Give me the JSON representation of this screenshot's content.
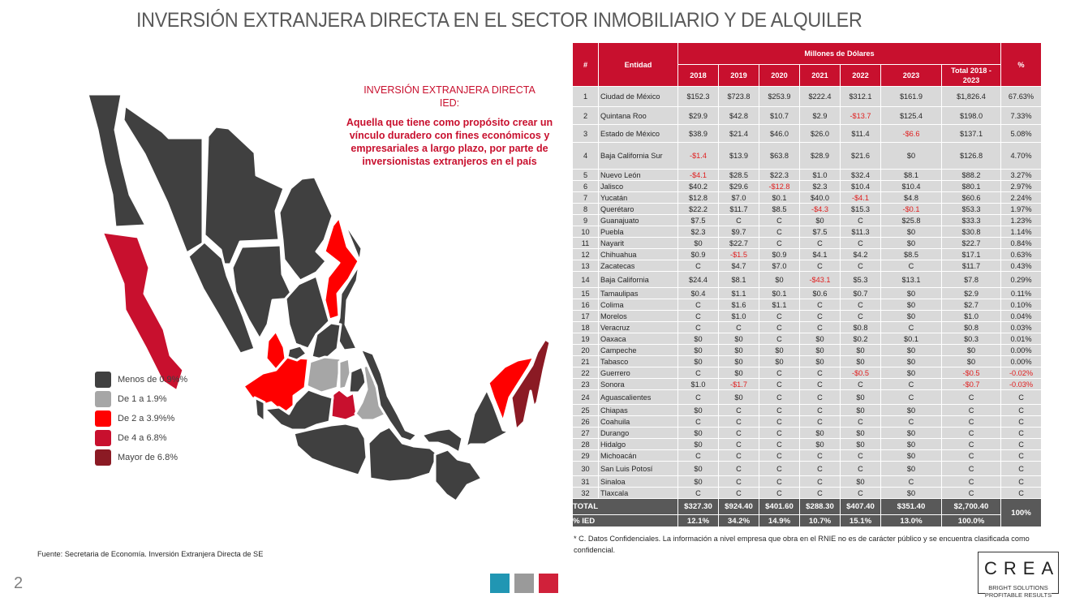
{
  "page": {
    "title": "INVERSIÓN EXTRANJERA DIRECTA EN EL SECTOR INMOBILIARIO Y DE ALQUILER",
    "page_number": "2",
    "source": "Fuente: Secretaria de Economía. Inversión Extranjera Directa de SE",
    "footnote": "* C. Datos Confidenciales. La información a nivel empresa que obra en el RNIE no es de carácter público y se encuentra clasificada como confidencial."
  },
  "definition": {
    "title_line1": "INVERSIÓN EXTRANJERA DIRECTA",
    "title_line2": "IED:",
    "body": "Aquella que tiene como propósito crear un vínculo duradero con fines económicos y empresariales a largo plazo, por parte de inversionistas extranjeros en el país"
  },
  "legend": [
    {
      "label": "Menos de 0.9%%",
      "color": "#404040"
    },
    {
      "label": "De 1 a 1.9%",
      "color": "#a6a6a6"
    },
    {
      "label": "De 2 a 3.9%%",
      "color": "#ff0000"
    },
    {
      "label": "De 4 a 6.8%",
      "color": "#c8102e"
    },
    {
      "label": "Mayor de 6.8%",
      "color": "#8b1a24"
    }
  ],
  "colors": {
    "header_red": "#c8102e",
    "negative": "#e02020",
    "row_bg": "#d9d9d9",
    "total_bg": "#595959",
    "accent_teal": "#2196b3",
    "accent_gray": "#9a9a9a",
    "accent_red": "#d0213a"
  },
  "table": {
    "header": {
      "num": "#",
      "entity": "Entidad",
      "group": "Millones de Dólares",
      "years": [
        "2018",
        "2019",
        "2020",
        "2021",
        "2022",
        "2023"
      ],
      "total": "Total 2018 - 2023",
      "pct": "%"
    },
    "rows": [
      {
        "n": "1",
        "entity": "Ciudad de México",
        "v": [
          "$152.3",
          "$723.8",
          "$253.9",
          "$222.4",
          "$312.1",
          "$161.9"
        ],
        "total": "$1,826.4",
        "pct": "67.63%",
        "h": 25
      },
      {
        "n": "2",
        "entity": "Quintana Roo",
        "v": [
          "$29.9",
          "$42.8",
          "$10.7",
          "$2.9",
          "-$13.7",
          "$125.4"
        ],
        "total": "$198.0",
        "pct": "7.33%",
        "h": 22
      },
      {
        "n": "3",
        "entity": "Estado de México",
        "v": [
          "$38.9",
          "$21.4",
          "$46.0",
          "$26.0",
          "$11.4",
          "-$6.6"
        ],
        "total": "$137.1",
        "pct": "5.08%",
        "h": 22
      },
      {
        "n": "4",
        "entity": "Baja California Sur",
        "v": [
          "-$1.4",
          "$13.9",
          "$63.8",
          "$28.9",
          "$21.6",
          "$0"
        ],
        "total": "$126.8",
        "pct": "4.70%",
        "h": 33
      },
      {
        "n": "5",
        "entity": "Nuevo León",
        "v": [
          "-$4.1",
          "$28.5",
          "$22.3",
          "$1.0",
          "$32.4",
          "$8.1"
        ],
        "total": "$88.2",
        "pct": "3.27%",
        "h": 14
      },
      {
        "n": "6",
        "entity": "Jalisco",
        "v": [
          "$40.2",
          "$29.6",
          "-$12.8",
          "$2.3",
          "$10.4",
          "$10.4"
        ],
        "total": "$80.1",
        "pct": "2.97%",
        "h": 14
      },
      {
        "n": "7",
        "entity": "Yucatán",
        "v": [
          "$12.8",
          "$7.0",
          "$0.1",
          "$40.0",
          "-$4.1",
          "$4.8"
        ],
        "total": "$60.6",
        "pct": "2.24%",
        "h": 14
      },
      {
        "n": "8",
        "entity": "Querétaro",
        "v": [
          "$22.2",
          "$11.7",
          "$8.5",
          "-$4.3",
          "$15.3",
          "-$0.1"
        ],
        "total": "$53.3",
        "pct": "1.97%",
        "h": 14
      },
      {
        "n": "9",
        "entity": "Guanajuato",
        "v": [
          "$7.5",
          "C",
          "C",
          "$0",
          "C",
          "$25.8"
        ],
        "total": "$33.3",
        "pct": "1.23%",
        "h": 14
      },
      {
        "n": "10",
        "entity": "Puebla",
        "v": [
          "$2.3",
          "$9.7",
          "C",
          "$7.5",
          "$11.3",
          "$0"
        ],
        "total": "$30.8",
        "pct": "1.14%",
        "h": 14
      },
      {
        "n": "11",
        "entity": "Nayarit",
        "v": [
          "$0",
          "$22.7",
          "C",
          "C",
          "C",
          "$0"
        ],
        "total": "$22.7",
        "pct": "0.84%",
        "h": 14
      },
      {
        "n": "12",
        "entity": "Chihuahua",
        "v": [
          "$0.9",
          "-$1.5",
          "$0.9",
          "$4.1",
          "$4.2",
          "$8.5"
        ],
        "total": "$17.1",
        "pct": "0.63%",
        "h": 14
      },
      {
        "n": "13",
        "entity": "Zacatecas",
        "v": [
          "C",
          "$4.7",
          "$7.0",
          "C",
          "C",
          "C"
        ],
        "total": "$11.7",
        "pct": "0.43%",
        "h": 14
      },
      {
        "n": "14",
        "entity": "Baja California",
        "v": [
          "$24.4",
          "$8.1",
          "$0",
          "-$43.1",
          "$5.3",
          "$13.1"
        ],
        "total": "$7.8",
        "pct": "0.29%",
        "h": 20
      },
      {
        "n": "15",
        "entity": "Tamaulipas",
        "v": [
          "$0.4",
          "$1.1",
          "$0.1",
          "$0.6",
          "$0.7",
          "$0"
        ],
        "total": "$2.9",
        "pct": "0.11%",
        "h": 14
      },
      {
        "n": "16",
        "entity": "Colima",
        "v": [
          "C",
          "$1.6",
          "$1.1",
          "C",
          "C",
          "$0"
        ],
        "total": "$2.7",
        "pct": "0.10%",
        "h": 14
      },
      {
        "n": "17",
        "entity": "Morelos",
        "v": [
          "C",
          "$1.0",
          "C",
          "C",
          "C",
          "$0"
        ],
        "total": "$1.0",
        "pct": "0.04%",
        "h": 14
      },
      {
        "n": "18",
        "entity": "Veracruz",
        "v": [
          "C",
          "C",
          "C",
          "C",
          "$0.8",
          "C"
        ],
        "total": "$0.8",
        "pct": "0.03%",
        "h": 14
      },
      {
        "n": "19",
        "entity": "Oaxaca",
        "v": [
          "$0",
          "$0",
          "C",
          "$0",
          "$0.2",
          "$0.1"
        ],
        "total": "$0.3",
        "pct": "0.01%",
        "h": 14
      },
      {
        "n": "20",
        "entity": "Campeche",
        "v": [
          "$0",
          "$0",
          "$0",
          "$0",
          "$0",
          "$0"
        ],
        "total": "$0",
        "pct": "0.00%",
        "h": 14
      },
      {
        "n": "21",
        "entity": "Tabasco",
        "v": [
          "$0",
          "$0",
          "$0",
          "$0",
          "$0",
          "$0"
        ],
        "total": "$0",
        "pct": "0.00%",
        "h": 14
      },
      {
        "n": "22",
        "entity": "Guerrero",
        "v": [
          "C",
          "$0",
          "C",
          "C",
          "-$0.5",
          "$0"
        ],
        "total": "-$0.5",
        "pct": "-0.02%",
        "h": 14
      },
      {
        "n": "23",
        "entity": "Sonora",
        "v": [
          "$1.0",
          "-$1.7",
          "C",
          "C",
          "C",
          "C"
        ],
        "total": "-$0.7",
        "pct": "-0.03%",
        "h": 14
      },
      {
        "n": "24",
        "entity": "Aguascalientes",
        "v": [
          "C",
          "$0",
          "C",
          "C",
          "$0",
          "C"
        ],
        "total": "C",
        "pct": "C",
        "h": 18
      },
      {
        "n": "25",
        "entity": "Chiapas",
        "v": [
          "$0",
          "C",
          "C",
          "C",
          "$0",
          "$0"
        ],
        "total": "C",
        "pct": "C",
        "h": 14
      },
      {
        "n": "26",
        "entity": "Coahuila",
        "v": [
          "C",
          "C",
          "C",
          "C",
          "C",
          "C"
        ],
        "total": "C",
        "pct": "C",
        "h": 14
      },
      {
        "n": "27",
        "entity": "Durango",
        "v": [
          "$0",
          "C",
          "C",
          "$0",
          "$0",
          "$0"
        ],
        "total": "C",
        "pct": "C",
        "h": 14
      },
      {
        "n": "28",
        "entity": "Hidalgo",
        "v": [
          "$0",
          "C",
          "C",
          "$0",
          "$0",
          "$0"
        ],
        "total": "C",
        "pct": "C",
        "h": 14
      },
      {
        "n": "29",
        "entity": "Michoacán",
        "v": [
          "C",
          "C",
          "C",
          "C",
          "C",
          "$0"
        ],
        "total": "C",
        "pct": "C",
        "h": 14
      },
      {
        "n": "30",
        "entity": "San Luis Potosí",
        "v": [
          "$0",
          "C",
          "C",
          "C",
          "C",
          "$0"
        ],
        "total": "C",
        "pct": "C",
        "h": 18
      },
      {
        "n": "31",
        "entity": "Sinaloa",
        "v": [
          "$0",
          "C",
          "C",
          "C",
          "$0",
          "C"
        ],
        "total": "C",
        "pct": "C",
        "h": 14
      },
      {
        "n": "32",
        "entity": "Tlaxcala",
        "v": [
          "C",
          "C",
          "C",
          "C",
          "C",
          "$0"
        ],
        "total": "C",
        "pct": "C",
        "h": 14
      }
    ],
    "total_row": {
      "label": "TOTAL",
      "v": [
        "$327.30",
        "$924.40",
        "$401.60",
        "$288.30",
        "$407.40",
        "$351.40"
      ],
      "total": "$2,700.40",
      "pct": "100%"
    },
    "ied_row": {
      "label": "% IED",
      "v": [
        "12.1%",
        "34.2%",
        "14.9%",
        "10.7%",
        "15.1%",
        "13.0%"
      ],
      "total": "100.0%"
    }
  },
  "logo": {
    "word": "CREA",
    "tagline_1": "BRIGHT SOLUTIONS",
    "tagline_2": "PROFITABLE RESULTS"
  }
}
